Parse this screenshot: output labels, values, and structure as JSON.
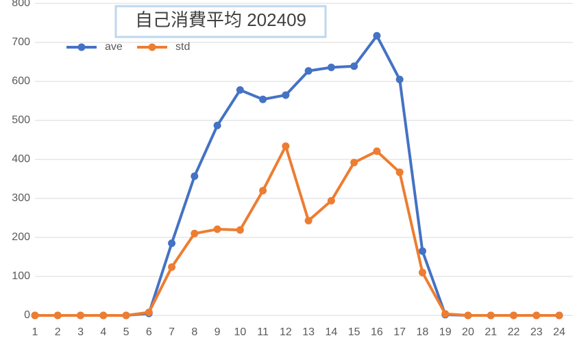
{
  "chart_data": {
    "type": "line",
    "title": "自己消費平均  202409",
    "categories": [
      "1",
      "2",
      "3",
      "4",
      "5",
      "6",
      "7",
      "8",
      "9",
      "10",
      "11",
      "12",
      "13",
      "14",
      "15",
      "16",
      "17",
      "18",
      "19",
      "20",
      "21",
      "22",
      "23",
      "24"
    ],
    "series": [
      {
        "name": "ave",
        "color": "#4472c4",
        "values": [
          0,
          0,
          0,
          0,
          0,
          5,
          185,
          357,
          487,
          578,
          554,
          565,
          627,
          636,
          639,
          717,
          605,
          165,
          2,
          0,
          0,
          0,
          0,
          0
        ]
      },
      {
        "name": "std",
        "color": "#ed7d31",
        "values": [
          0,
          0,
          0,
          0,
          0,
          8,
          124,
          210,
          221,
          219,
          320,
          434,
          243,
          294,
          392,
          421,
          367,
          110,
          4,
          0,
          0,
          0,
          0,
          0
        ]
      }
    ],
    "ylim": [
      0,
      800
    ],
    "yticks": [
      0,
      100,
      200,
      300,
      400,
      500,
      600,
      700,
      800
    ],
    "grid": true,
    "legend": "top-left"
  }
}
